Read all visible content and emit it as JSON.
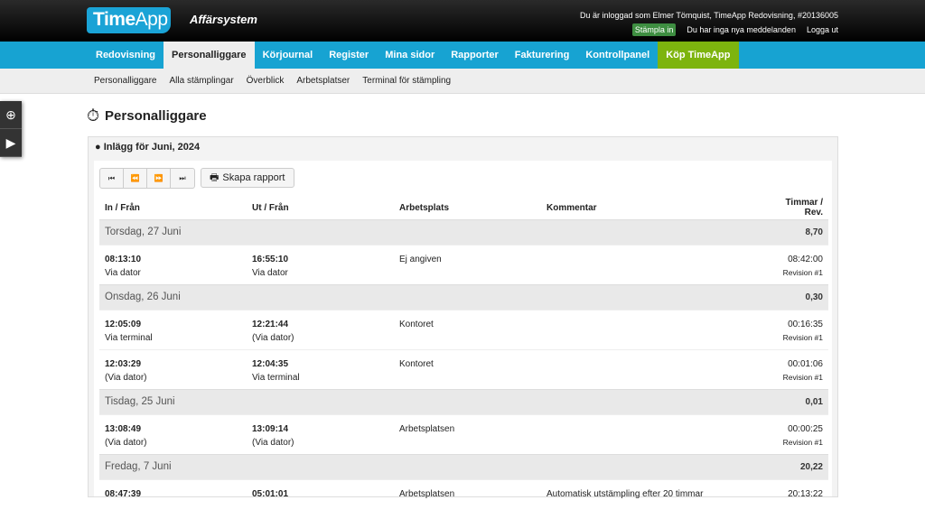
{
  "header": {
    "logo_bold": "Time",
    "logo_light": "App",
    "system": "Affärsystem",
    "user_info": "Du är inloggad som Elmer Tömquist, TimeApp Redovisning, #20136005",
    "stampla": "Stämpla in",
    "messages": "Du har inga nya meddelanden",
    "logout": "Logga ut"
  },
  "nav": [
    {
      "label": "Redovisning"
    },
    {
      "label": "Personalliggare",
      "active": true
    },
    {
      "label": "Körjournal"
    },
    {
      "label": "Register"
    },
    {
      "label": "Mina sidor"
    },
    {
      "label": "Rapporter"
    },
    {
      "label": "Fakturering"
    },
    {
      "label": "Kontrollpanel"
    },
    {
      "label": "Köp TimeApp"
    }
  ],
  "subnav": [
    {
      "label": "Personalliggare"
    },
    {
      "label": "Alla stämplingar"
    },
    {
      "label": "Överblick"
    },
    {
      "label": "Arbetsplatser"
    },
    {
      "label": "Terminal för stämpling"
    }
  ],
  "page_title": "Personalliggare",
  "panel": {
    "title": "Inlägg för Juni, 2024",
    "report_button": "Skapa rapport"
  },
  "table": {
    "columns": [
      "In / Från",
      "Ut / Från",
      "Arbetsplats",
      "Kommentar",
      "Timmar / Rev."
    ],
    "days": [
      {
        "label": "Torsdag, 27 Juni",
        "total": "8,70",
        "entries": [
          {
            "in": "08:13:10",
            "in_src": "Via dator",
            "out": "16:55:10",
            "out_src": "Via dator",
            "place": "Ej angiven",
            "comment": "",
            "time": "08:42:00",
            "rev": "Revision #1"
          }
        ]
      },
      {
        "label": "Onsdag, 26 Juni",
        "total": "0,30",
        "entries": [
          {
            "in": "12:05:09",
            "in_src": "Via terminal",
            "out": "12:21:44",
            "out_src": "(Via dator)",
            "place": "Kontoret",
            "comment": "",
            "time": "00:16:35",
            "rev": "Revision #1"
          },
          {
            "in": "12:03:29",
            "in_src": "(Via dator)",
            "out": "12:04:35",
            "out_src": "Via terminal",
            "place": "Kontoret",
            "comment": "",
            "time": "00:01:06",
            "rev": "Revision #1"
          }
        ]
      },
      {
        "label": "Tisdag, 25 Juni",
        "total": "0,01",
        "entries": [
          {
            "in": "13:08:49",
            "in_src": "(Via dator)",
            "out": "13:09:14",
            "out_src": "(Via dator)",
            "place": "Arbetsplatsen",
            "comment": "",
            "time": "00:00:25",
            "rev": "Revision #1"
          }
        ]
      },
      {
        "label": "Fredag, 7 Juni",
        "total": "20,22",
        "entries": [
          {
            "in": "08:47:39",
            "in_src": "",
            "out": "05:01:01",
            "out_src": "",
            "place": "Arbetsplatsen",
            "comment": "Automatisk utstämpling efter 20 timmar",
            "time": "20:13:22",
            "rev": ""
          }
        ]
      }
    ]
  }
}
